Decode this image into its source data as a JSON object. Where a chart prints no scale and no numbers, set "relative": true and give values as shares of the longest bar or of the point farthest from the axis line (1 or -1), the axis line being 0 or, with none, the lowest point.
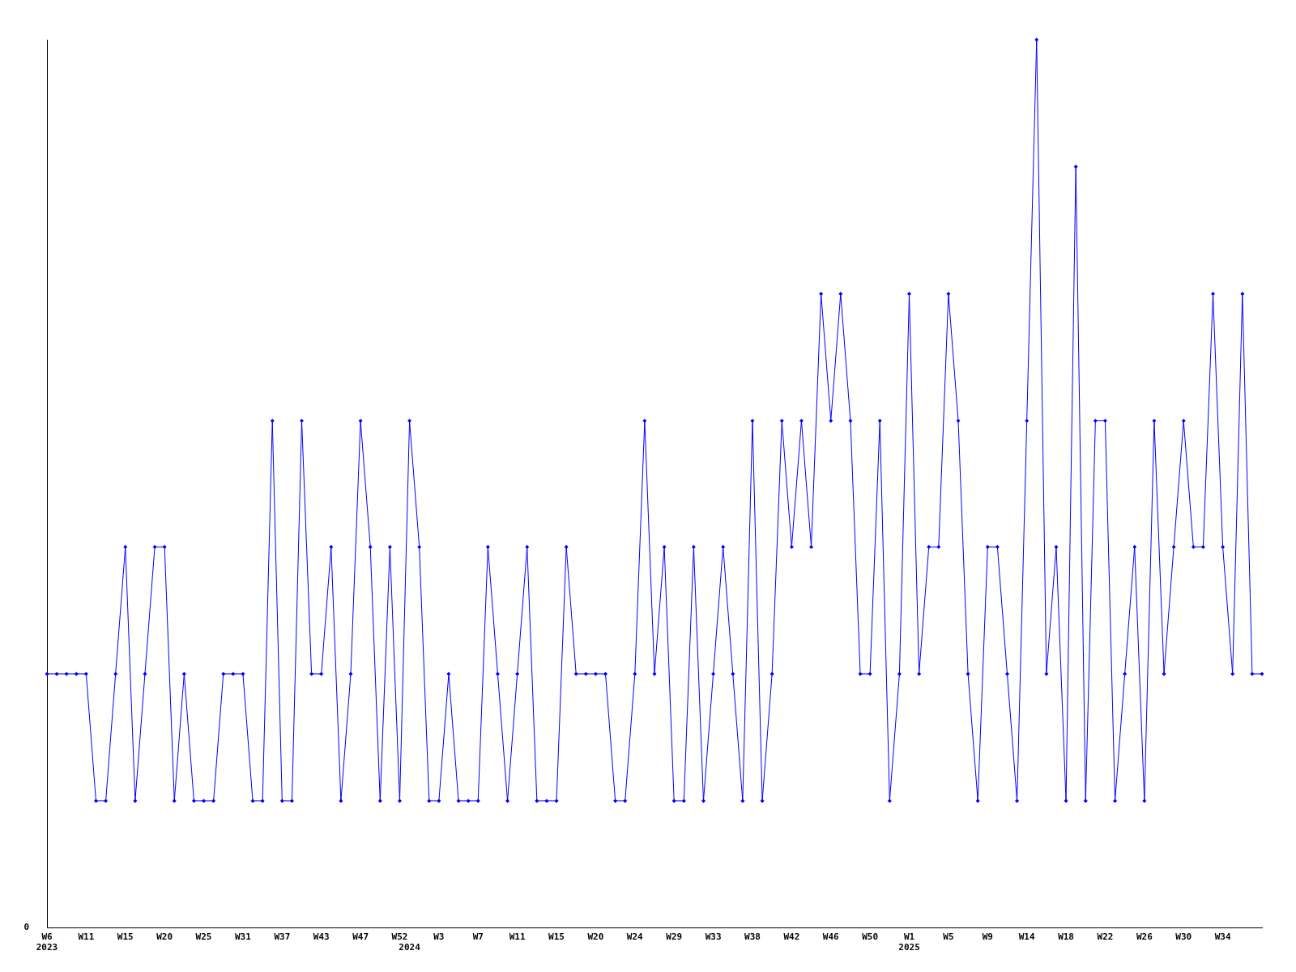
{
  "chart_data": {
    "type": "line",
    "relative": true,
    "color": "#0000ff",
    "marker": "diamond",
    "line_style": "solid",
    "grid": false,
    "legend": false,
    "annotations": [
      "0"
    ],
    "categories": [
      "W6\n2023",
      null,
      null,
      null,
      "W11",
      null,
      null,
      null,
      "W15",
      null,
      null,
      null,
      "W20",
      null,
      null,
      null,
      "W25",
      null,
      null,
      null,
      "W31",
      null,
      null,
      null,
      "W37",
      null,
      null,
      null,
      "W43",
      null,
      null,
      null,
      "W47",
      null,
      null,
      null,
      "W52",
      "\n2024",
      null,
      null,
      "W3",
      null,
      null,
      null,
      "W7",
      null,
      null,
      null,
      "W11",
      null,
      null,
      null,
      "W15",
      null,
      null,
      null,
      "W20",
      null,
      null,
      null,
      "W24",
      null,
      null,
      null,
      "W29",
      null,
      null,
      null,
      "W33",
      null,
      null,
      null,
      "W38",
      null,
      null,
      null,
      "W42",
      null,
      null,
      null,
      "W46",
      null,
      null,
      null,
      "W50",
      null,
      null,
      null,
      "W1\n2025",
      null,
      null,
      null,
      "W5",
      null,
      null,
      null,
      "W9",
      null,
      null,
      null,
      "W14",
      null,
      null,
      null,
      "W18",
      null,
      null,
      null,
      "W22",
      null,
      null,
      null,
      "W26",
      null,
      null,
      null,
      "W30",
      null,
      null,
      null,
      "W34",
      null,
      null,
      null,
      null
    ],
    "values": [
      0.286,
      0.286,
      0.286,
      0.286,
      0.286,
      0.143,
      0.143,
      0.286,
      0.429,
      0.143,
      0.286,
      0.429,
      0.429,
      0.143,
      0.286,
      0.143,
      0.143,
      0.143,
      0.286,
      0.286,
      0.286,
      0.143,
      0.143,
      0.571,
      0.143,
      0.143,
      0.571,
      0.286,
      0.286,
      0.429,
      0.143,
      0.286,
      0.571,
      0.429,
      0.143,
      0.429,
      0.143,
      0.571,
      0.429,
      0.143,
      0.143,
      0.286,
      0.143,
      0.143,
      0.143,
      0.429,
      0.286,
      0.143,
      0.286,
      0.429,
      0.143,
      0.143,
      0.143,
      0.429,
      0.286,
      0.286,
      0.286,
      0.286,
      0.143,
      0.143,
      0.286,
      0.571,
      0.286,
      0.429,
      0.143,
      0.143,
      0.429,
      0.143,
      0.286,
      0.429,
      0.286,
      0.143,
      0.571,
      0.143,
      0.286,
      0.571,
      0.429,
      0.571,
      0.429,
      0.714,
      0.571,
      0.714,
      0.571,
      0.286,
      0.286,
      0.571,
      0.143,
      0.286,
      0.714,
      0.286,
      0.429,
      0.429,
      0.714,
      0.571,
      0.286,
      0.143,
      0.429,
      0.429,
      0.286,
      0.143,
      0.571,
      1,
      0.286,
      0.429,
      0.143,
      0.857,
      0.143,
      0.571,
      0.571,
      0.143,
      0.286,
      0.429,
      0.143,
      0.571,
      0.286,
      0.429,
      0.571,
      0.429,
      0.429,
      0.714,
      0.429,
      0.286,
      0.714,
      0.286,
      0.286
    ]
  }
}
